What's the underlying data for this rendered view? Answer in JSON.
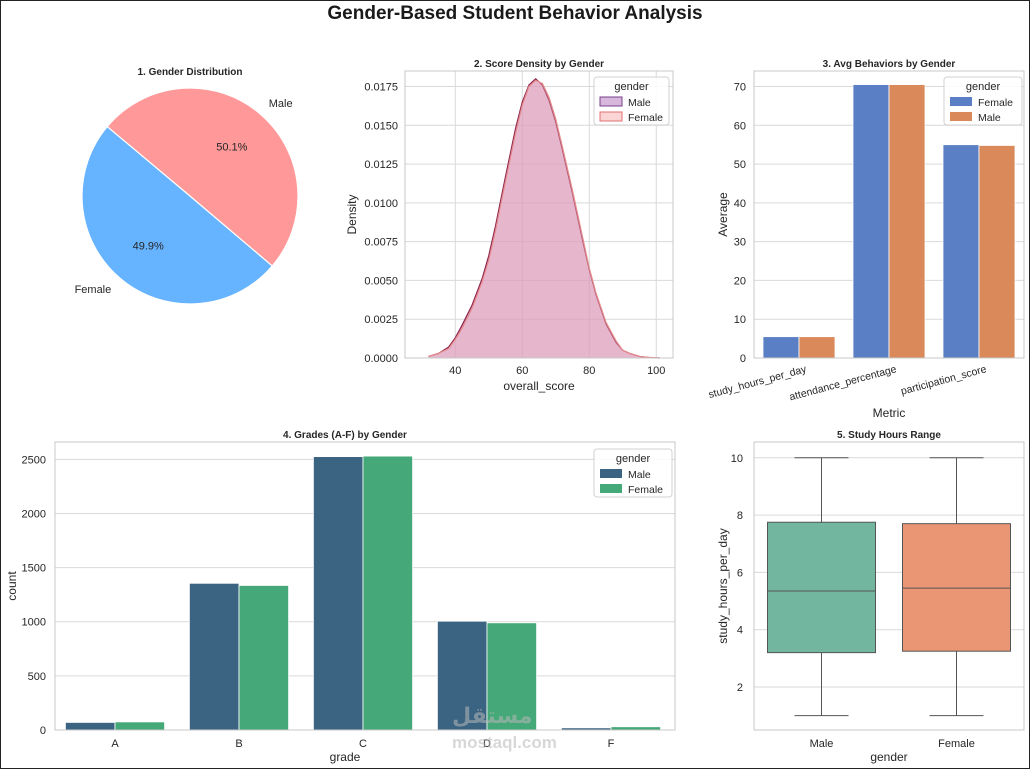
{
  "figure_title": "Gender-Based Student Behavior Analysis",
  "watermark": {
    "arabic": "مستقل",
    "latin": "mostaql.com"
  },
  "colors": {
    "pie_female": "#66b3ff",
    "pie_male": "#ff9999",
    "kde_male_fill": "#c88ab8",
    "kde_male_line": "#8b2252",
    "kde_female_line": "#e58a8a",
    "avg_female": "#5b7fc4",
    "avg_male": "#d9895a",
    "grade_male": "#3b6482",
    "grade_female": "#45a878",
    "box_male": "#73b6a0",
    "box_female": "#ea9573",
    "grid": "#d9d9d9",
    "spine": "#c8c8c8"
  },
  "chart_data": [
    {
      "type": "pie",
      "title": "1. Gender Distribution",
      "labels": [
        "Female",
        "Male"
      ],
      "values": [
        49.9,
        50.1
      ],
      "pct_labels": [
        "49.9%",
        "50.1%"
      ],
      "start_angle": 140
    },
    {
      "type": "area",
      "title": "2. Score Density by Gender",
      "xlabel": "overall_score",
      "ylabel": "Density",
      "xlim": [
        25,
        105
      ],
      "ylim": [
        0,
        0.0185
      ],
      "xticks": [
        40,
        60,
        80,
        100
      ],
      "yticks": [
        0,
        0.0025,
        0.005,
        0.0075,
        0.01,
        0.0125,
        0.015,
        0.0175
      ],
      "ytick_labels": [
        "0.0000",
        "0.0025",
        "0.0050",
        "0.0075",
        "0.0100",
        "0.0125",
        "0.0150",
        "0.0175"
      ],
      "legend_title": "gender",
      "legend_position": "top-right",
      "series": [
        {
          "name": "Male",
          "peak_x": 63.5,
          "peak_density": 0.018,
          "x": [
            32,
            35,
            38,
            40,
            42,
            45,
            48,
            50,
            52,
            55,
            58,
            60,
            62,
            64,
            66,
            68,
            70,
            72,
            75,
            78,
            80,
            82,
            85,
            88,
            90,
            92,
            95,
            98,
            101
          ],
          "y": [
            0.0001,
            0.0003,
            0.0007,
            0.0013,
            0.0021,
            0.0034,
            0.0051,
            0.0066,
            0.0085,
            0.0117,
            0.0148,
            0.0165,
            0.0176,
            0.018,
            0.0176,
            0.0166,
            0.0152,
            0.0134,
            0.0106,
            0.0076,
            0.0057,
            0.0041,
            0.0022,
            0.001,
            0.0005,
            0.0003,
            0.0001,
            3e-05,
            0.0
          ]
        },
        {
          "name": "Female",
          "peak_x": 64,
          "peak_density": 0.0179,
          "x": [
            32,
            35,
            38,
            40,
            42,
            45,
            48,
            50,
            52,
            55,
            58,
            60,
            62,
            64,
            66,
            68,
            70,
            72,
            75,
            78,
            80,
            82,
            85,
            88,
            90,
            92,
            95,
            98,
            101
          ],
          "y": [
            0.0001,
            0.0003,
            0.0006,
            0.0012,
            0.0019,
            0.0032,
            0.0049,
            0.0063,
            0.0082,
            0.0114,
            0.0145,
            0.0163,
            0.0175,
            0.0179,
            0.0177,
            0.0168,
            0.0154,
            0.0136,
            0.0108,
            0.0078,
            0.0058,
            0.0042,
            0.0023,
            0.0011,
            0.0005,
            0.0003,
            0.0001,
            3e-05,
            0.0
          ]
        }
      ]
    },
    {
      "type": "bar",
      "title": "3. Avg Behaviors by Gender",
      "xlabel": "Metric",
      "ylabel": "Average",
      "categories": [
        "study_hours_per_day",
        "attendance_percentage",
        "participation_score"
      ],
      "ylim": [
        0,
        74
      ],
      "yticks": [
        0,
        10,
        20,
        30,
        40,
        50,
        60,
        70
      ],
      "legend_title": "gender",
      "legend_position": "top-right",
      "series": [
        {
          "name": "Female",
          "values": [
            5.5,
            70.5,
            55.0
          ]
        },
        {
          "name": "Male",
          "values": [
            5.5,
            70.5,
            54.8
          ]
        }
      ]
    },
    {
      "type": "bar",
      "title": "4. Grades (A-F) by Gender",
      "xlabel": "grade",
      "ylabel": "count",
      "categories": [
        "A",
        "B",
        "C",
        "D",
        "F"
      ],
      "ylim": [
        0,
        2660
      ],
      "yticks": [
        0,
        500,
        1000,
        1500,
        2000,
        2500
      ],
      "legend_title": "gender",
      "legend_position": "top-right",
      "series": [
        {
          "name": "Male",
          "values": [
            70,
            1355,
            2525,
            1005,
            20
          ]
        },
        {
          "name": "Female",
          "values": [
            75,
            1335,
            2530,
            990,
            30
          ]
        }
      ]
    },
    {
      "type": "box",
      "title": "5. Study Hours Range",
      "xlabel": "gender",
      "ylabel": "study_hours_per_day",
      "categories": [
        "Male",
        "Female"
      ],
      "ylim": [
        0.5,
        10.55
      ],
      "yticks": [
        2,
        4,
        6,
        8,
        10
      ],
      "boxes": [
        {
          "name": "Male",
          "min": 1.0,
          "q1": 3.2,
          "median": 5.35,
          "q3": 7.75,
          "max": 10.0
        },
        {
          "name": "Female",
          "min": 1.0,
          "q1": 3.25,
          "median": 5.45,
          "q3": 7.7,
          "max": 10.0
        }
      ]
    }
  ]
}
